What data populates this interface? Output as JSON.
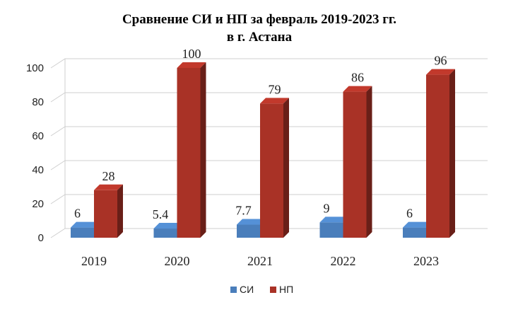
{
  "chart_data": {
    "type": "bar",
    "title": "Сравнение СИ и НП за февраль 2019-2023 гг.",
    "subtitle": "в г. Астана",
    "categories": [
      "2019",
      "2020",
      "2021",
      "2022",
      "2023"
    ],
    "series": [
      {
        "name": "СИ",
        "values": [
          6,
          5.4,
          7.7,
          9,
          6
        ],
        "labels": [
          "6",
          "5.4",
          "7.7",
          "9",
          "6"
        ],
        "color": "#4a7ebb"
      },
      {
        "name": "НП",
        "values": [
          28,
          100,
          79,
          86,
          96
        ],
        "labels": [
          "28",
          "100",
          "79",
          "86",
          "96"
        ],
        "color": "#a93226"
      }
    ],
    "ylim": [
      0,
      100
    ],
    "yticks": [
      0,
      20,
      40,
      60,
      80,
      100
    ],
    "grid": true,
    "legend": "bottom",
    "style": "3d"
  }
}
